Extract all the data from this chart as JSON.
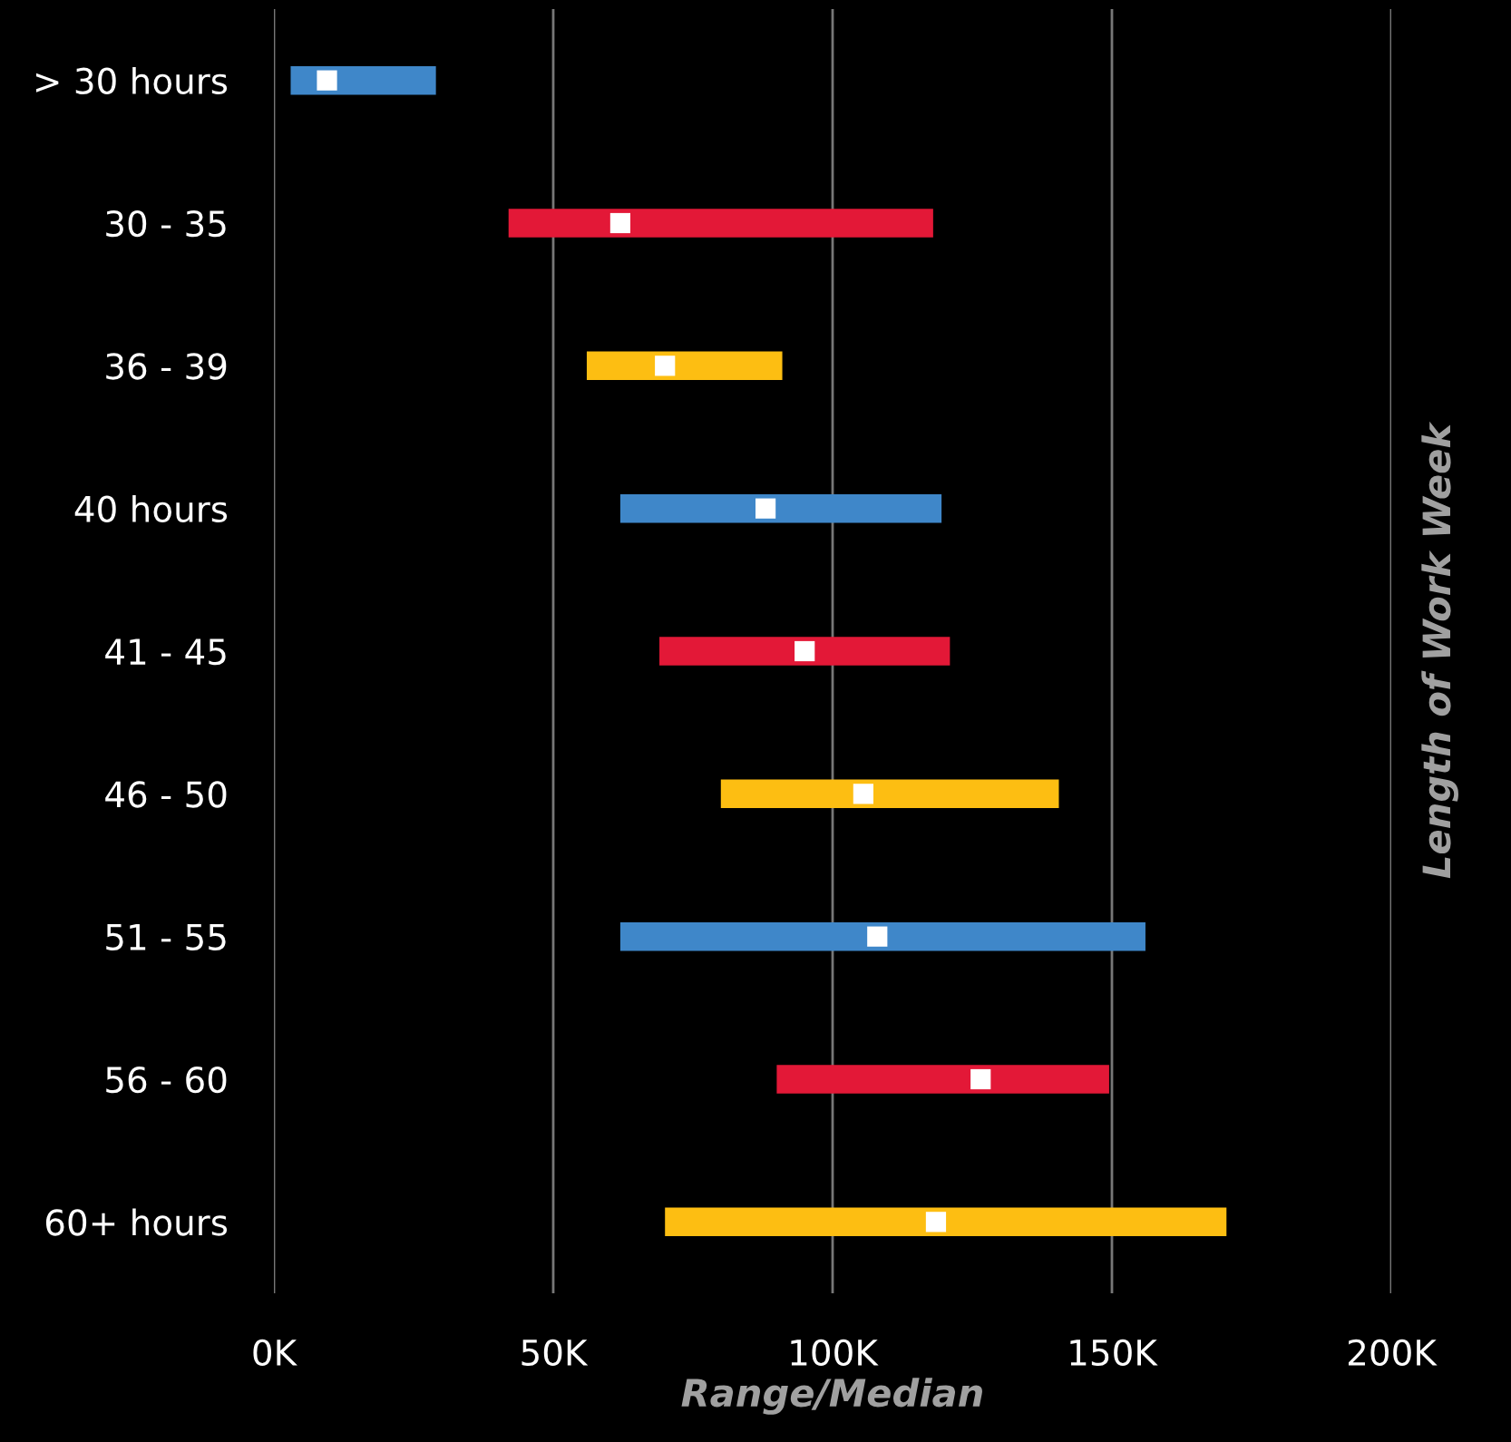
{
  "chart_data": {
    "type": "bar",
    "orientation": "horizontal",
    "xlabel": "Range/Median",
    "ylabel": "Length of Work Week",
    "categories": [
      "> 30 hours",
      "30 - 35",
      "36 - 39",
      "40 hours",
      "41 - 45",
      "46 - 50",
      "51 - 55",
      "56 - 60",
      "60+ hours"
    ],
    "series": [
      {
        "base": [
          3000,
          42000,
          56000,
          62000,
          69000,
          80000,
          62000,
          90000,
          70000
        ],
        "values": [
          26000,
          76000,
          35000,
          57500,
          52000,
          60500,
          94000,
          59500,
          100500
        ],
        "colors": [
          "#3f87c9",
          "#e31837",
          "#fdbe12",
          "#3f87c9",
          "#e31837",
          "#fdbe12",
          "#3f87c9",
          "#e31837",
          "#fdbe12"
        ]
      },
      {
        "type": "scatter",
        "marker": "square",
        "color": "#ffffff",
        "values": [
          9500,
          62000,
          70000,
          88000,
          95000,
          105500,
          108000,
          126500,
          118500
        ]
      }
    ],
    "xlim": [
      0,
      200000
    ],
    "xticks": [
      {
        "value": 0,
        "label": "0K"
      },
      {
        "value": 50000,
        "label": "50K"
      },
      {
        "value": 100000,
        "label": "100K"
      },
      {
        "value": 150000,
        "label": "150K"
      },
      {
        "value": 200000,
        "label": "200K"
      }
    ],
    "grid": "x",
    "legend": false
  }
}
